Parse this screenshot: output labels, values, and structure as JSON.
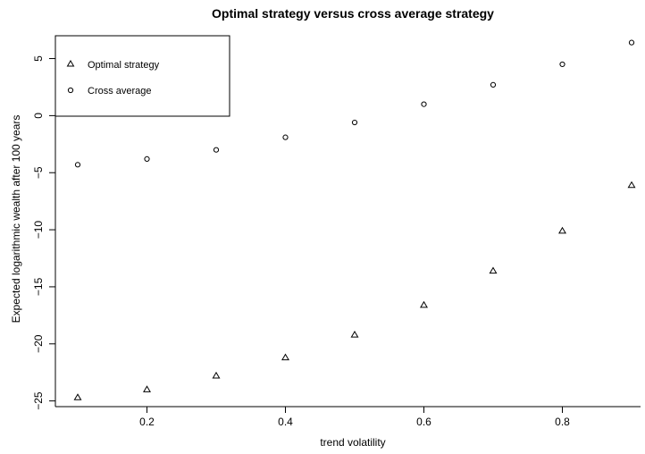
{
  "chart_data": {
    "type": "scatter",
    "title": "Optimal strategy versus cross average strategy",
    "xlabel": "trend volatility",
    "ylabel": "Expected logarithmic wealth after 100 years",
    "xlim": [
      0.1,
      0.9
    ],
    "ylim": [
      -25.5,
      7.0
    ],
    "x_ticks": [
      0.2,
      0.4,
      0.6,
      0.8
    ],
    "x_tick_labels": [
      "0.2",
      "0.4",
      "0.6",
      "0.8"
    ],
    "y_ticks": [
      -25,
      -20,
      -15,
      -10,
      -5,
      0,
      5
    ],
    "y_tick_labels": [
      "−25",
      "−20",
      "−15",
      "−10",
      "−5",
      "0",
      "5"
    ],
    "grid": false,
    "legend_position": "top-left",
    "series": [
      {
        "name": "Optimal strategy",
        "marker": "triangle",
        "x": [
          0.1,
          0.2,
          0.3,
          0.4,
          0.5,
          0.6,
          0.7,
          0.8,
          0.9
        ],
        "y": [
          -24.7,
          -24.0,
          -22.8,
          -21.2,
          -19.2,
          -16.6,
          -13.6,
          -10.1,
          -6.1
        ]
      },
      {
        "name": "Cross average",
        "marker": "circle",
        "x": [
          0.1,
          0.2,
          0.3,
          0.4,
          0.5,
          0.6,
          0.7,
          0.8,
          0.9
        ],
        "y": [
          -4.3,
          -3.8,
          -3.0,
          -1.9,
          -0.6,
          1.0,
          2.7,
          4.5,
          6.4
        ]
      }
    ]
  }
}
